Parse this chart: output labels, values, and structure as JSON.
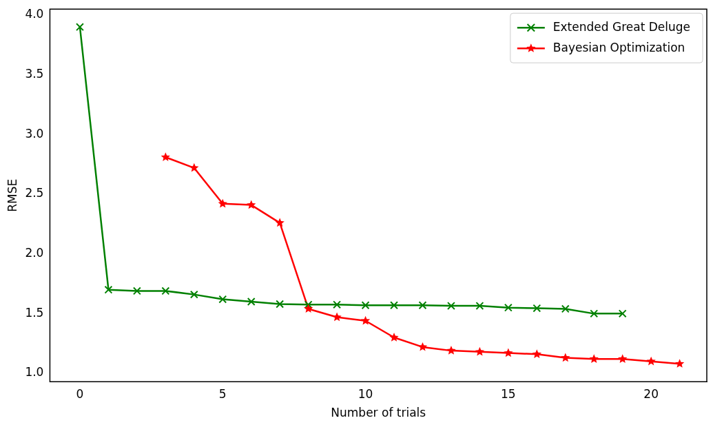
{
  "chart_data": {
    "type": "line",
    "xlabel": "Number of trials",
    "ylabel": "RMSE",
    "xlim": [
      -1.05,
      21.95
    ],
    "ylim": [
      0.93,
      4.05
    ],
    "xticks": [
      0,
      5,
      10,
      15,
      20
    ],
    "yticks": [
      {
        "value": 1,
        "label": "1.0"
      },
      {
        "value": 1.5,
        "label": "1.5"
      },
      {
        "value": 2,
        "label": "2.0"
      },
      {
        "value": 2.5,
        "label": "2.5"
      },
      {
        "value": 3,
        "label": "3.0"
      },
      {
        "value": 3.5,
        "label": "3.5"
      },
      {
        "value": 4,
        "label": "4.0"
      }
    ],
    "grid": false,
    "legend": "top right",
    "line_style": "solid",
    "series": [
      {
        "name": "Extended Great Deluge",
        "color": "#008000",
        "marker": "cross",
        "x": [
          0,
          1,
          2,
          3,
          4,
          5,
          6,
          7,
          8,
          9,
          10,
          11,
          12,
          13,
          14,
          15,
          16,
          17,
          18,
          19
        ],
        "values": [
          3.9,
          1.7,
          1.69,
          1.69,
          1.66,
          1.62,
          1.6,
          1.58,
          1.575,
          1.575,
          1.57,
          1.57,
          1.57,
          1.565,
          1.565,
          1.55,
          1.545,
          1.54,
          1.5,
          1.5
        ]
      },
      {
        "name": "Bayesian Optimization",
        "color": "#ff0000",
        "marker": "star",
        "x": [
          3,
          4,
          5,
          6,
          7,
          8,
          9,
          10,
          11,
          12,
          13,
          14,
          15,
          16,
          17,
          18,
          19,
          20,
          21
        ],
        "values": [
          2.81,
          2.72,
          2.42,
          2.41,
          2.26,
          1.54,
          1.47,
          1.44,
          1.3,
          1.22,
          1.19,
          1.18,
          1.17,
          1.16,
          1.13,
          1.12,
          1.12,
          1.1,
          1.08
        ]
      }
    ]
  }
}
